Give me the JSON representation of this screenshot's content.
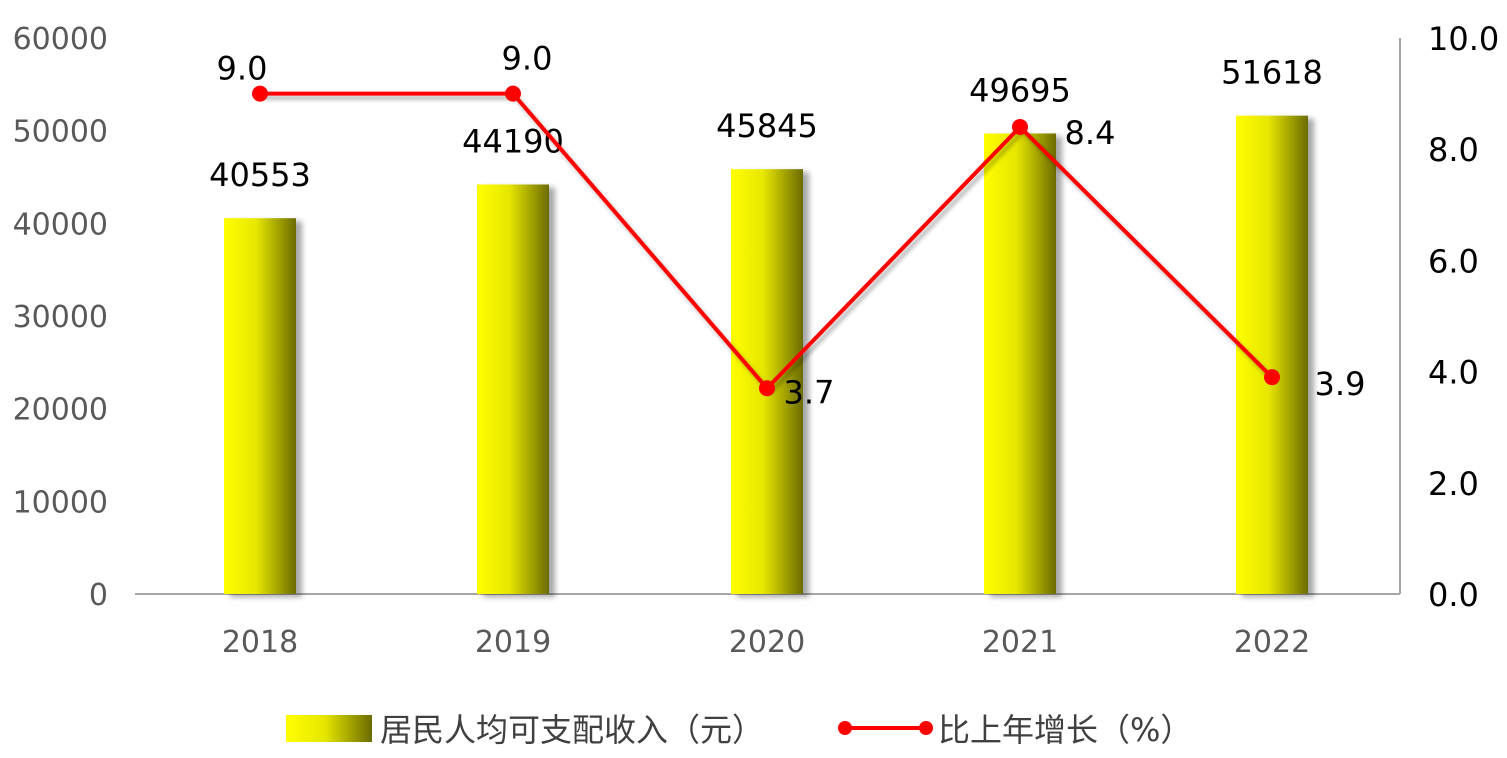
{
  "chart_data": {
    "type": "bar",
    "categories": [
      "2018",
      "2019",
      "2020",
      "2021",
      "2022"
    ],
    "series": [
      {
        "name": "居民人均可支配收入（元）",
        "type": "bar",
        "axis": "left",
        "values": [
          40553,
          44190,
          45845,
          49695,
          51618
        ],
        "labels": [
          "40553",
          "44190",
          "45845",
          "49695",
          "51618"
        ]
      },
      {
        "name": "比上年增长（%）",
        "type": "line",
        "axis": "right",
        "values": [
          9.0,
          9.0,
          3.7,
          8.4,
          3.9
        ],
        "labels": [
          "9.0",
          "9.0",
          "3.7",
          "8.4",
          "3.9"
        ]
      }
    ],
    "left_axis": {
      "min": 0,
      "max": 60000,
      "ticks": [
        "0",
        "10000",
        "20000",
        "30000",
        "40000",
        "50000",
        "60000"
      ]
    },
    "right_axis": {
      "min": 0,
      "max": 10,
      "ticks": [
        "0.0",
        "2.0",
        "4.0",
        "6.0",
        "8.0",
        "10.0"
      ]
    },
    "grid": false,
    "legend_position": "bottom",
    "colors": {
      "bar_light": "#ffff00",
      "bar_dark": "#6b6b00",
      "line": "#ff0000",
      "axis": "#a6a6a6"
    }
  }
}
